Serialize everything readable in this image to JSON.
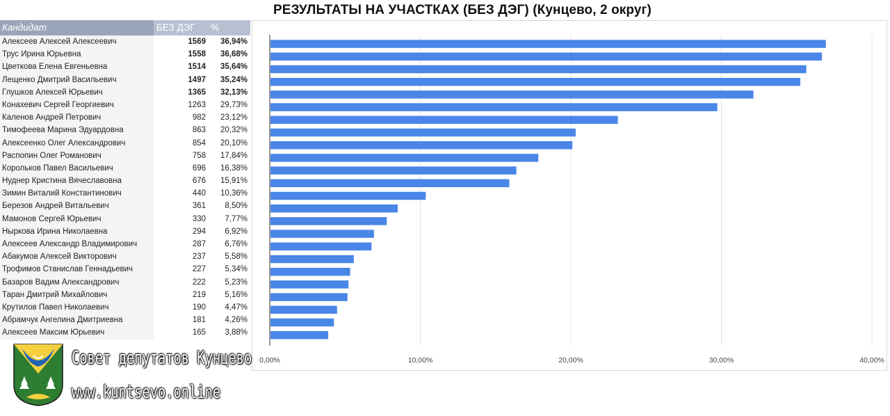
{
  "title": "РЕЗУЛЬТАТЫ НА УЧАСТКАХ (БЕЗ ДЭГ) (Кунцево, 2 округ)",
  "table": {
    "headers": {
      "name": "Кандидат",
      "votes": "БЕЗ ДЭГ",
      "pct": "%"
    },
    "rows": [
      {
        "name": "Алексеев Алексей Алексеевич",
        "votes": "1569",
        "pct": "36,94%"
      },
      {
        "name": "Трус Ирина Юрьевна",
        "votes": "1558",
        "pct": "36,68%"
      },
      {
        "name": "Цветкова Елена Евгеньевна",
        "votes": "1514",
        "pct": "35,64%"
      },
      {
        "name": "Лещенко Дмитрий Васильевич",
        "votes": "1497",
        "pct": "35,24%"
      },
      {
        "name": "Глушков Алексей Юрьевич",
        "votes": "1365",
        "pct": "32,13%"
      },
      {
        "name": "Конахевич Сергей Георгиевич",
        "votes": "1263",
        "pct": "29,73%"
      },
      {
        "name": "Каленов Андрей Петрович",
        "votes": "982",
        "pct": "23,12%"
      },
      {
        "name": "Тимофеева Марина Эдуардовна",
        "votes": "863",
        "pct": "20,32%"
      },
      {
        "name": "Алексеенко Олег Александрович",
        "votes": "854",
        "pct": "20,10%"
      },
      {
        "name": "Распопин Олег Романович",
        "votes": "758",
        "pct": "17,84%"
      },
      {
        "name": "Корольков Павел Васильевич",
        "votes": "696",
        "pct": "16,38%"
      },
      {
        "name": "Нуднер Кристина Вячеславовна",
        "votes": "676",
        "pct": "15,91%"
      },
      {
        "name": "Зимин Виталий Константинович",
        "votes": "440",
        "pct": "10,36%"
      },
      {
        "name": "Березов Андрей Витальевич",
        "votes": "361",
        "pct": "8,50%"
      },
      {
        "name": "Мамонов Сергей Юрьевич",
        "votes": "330",
        "pct": "7,77%"
      },
      {
        "name": "Ныркова Ирина Николаевна",
        "votes": "294",
        "pct": "6,92%"
      },
      {
        "name": "Алексеев Александр Владимирович",
        "votes": "287",
        "pct": "6,76%"
      },
      {
        "name": "Абакумов Алексей Викторович",
        "votes": "237",
        "pct": "5,58%"
      },
      {
        "name": "Трофимов Станислав Геннадьевич",
        "votes": "227",
        "pct": "5,34%"
      },
      {
        "name": "Базаров Вадим Александрович",
        "votes": "222",
        "pct": "5,23%"
      },
      {
        "name": "Таран Дмитрий Михайлович",
        "votes": "219",
        "pct": "5,16%"
      },
      {
        "name": "Крутилов Павел Николаевич",
        "votes": "190",
        "pct": "4,47%"
      },
      {
        "name": "Абрамчук Ангелина Дмитриевна",
        "votes": "181",
        "pct": "4,26%"
      },
      {
        "name": "Алексеев Максим Юрьевич",
        "votes": "165",
        "pct": "3,88%"
      }
    ]
  },
  "chart_data": {
    "type": "bar",
    "orientation": "horizontal",
    "categories": [
      "Алексеев Алексей Алексеевич",
      "Трус Ирина Юрьевна",
      "Цветкова Елена Евгеньевна",
      "Лещенко Дмитрий Васильевич",
      "Глушков Алексей Юрьевич",
      "Конахевич Сергей Георгиевич",
      "Каленов Андрей Петрович",
      "Тимофеева Марина Эдуардовна",
      "Алексеенко Олег Александрович",
      "Распопин Олег Романович",
      "Корольков Павел Васильевич",
      "Нуднер Кристина Вячеславовна",
      "Зимин Виталий Константинович",
      "Березов Андрей Витальевич",
      "Мамонов Сергей Юрьевич",
      "Ныркова Ирина Николаевна",
      "Алексеев Александр Владимирович",
      "Абакумов Алексей Викторович",
      "Трофимов Станислав Геннадьевич",
      "Базаров Вадим Александрович",
      "Таран Дмитрий Михайлович",
      "Крутилов Павел Николаевич",
      "Абрамчук Ангелина Дмитриевна",
      "Алексеев Максим Юрьевич"
    ],
    "values": [
      36.94,
      36.68,
      35.64,
      35.24,
      32.13,
      29.73,
      23.12,
      20.32,
      20.1,
      17.84,
      16.38,
      15.91,
      10.36,
      8.5,
      7.77,
      6.92,
      6.76,
      5.58,
      5.34,
      5.23,
      5.16,
      4.47,
      4.26,
      3.88
    ],
    "xlim": [
      0,
      40
    ],
    "x_ticks": [
      "0,00%",
      "10,00%",
      "20,00%",
      "30,00%",
      "40,00%"
    ],
    "grid": true,
    "bar_color": "#4a86e8"
  },
  "footer": {
    "org_name": "Совет депутатов Кунцево",
    "website": "www.kuntsevo.online"
  },
  "logo_icon": "kuntsevo-coat-of-arms-icon"
}
